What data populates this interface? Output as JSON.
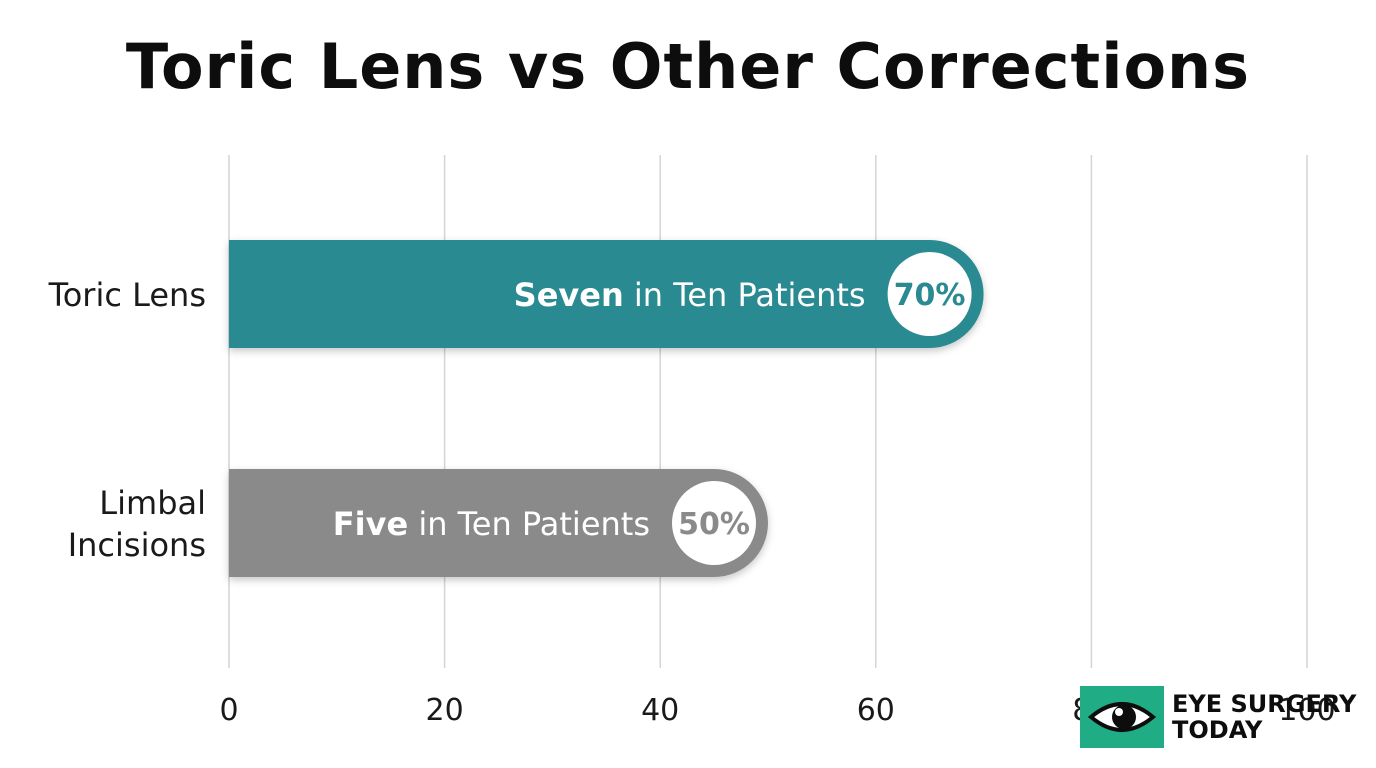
{
  "chart_data": {
    "type": "bar",
    "orientation": "horizontal",
    "title": "Toric Lens vs Other Corrections",
    "categories": [
      "Toric Lens",
      "Limbal Incisions"
    ],
    "category_lines": [
      [
        "Toric Lens"
      ],
      [
        "Limbal",
        "Incisions"
      ]
    ],
    "values": [
      70,
      50
    ],
    "bar_labels": [
      {
        "bold": "Seven",
        "rest": " in Ten Patients",
        "badge": "70%"
      },
      {
        "bold": "Five",
        "rest": " in Ten Patients",
        "badge": "50%"
      }
    ],
    "bar_colors": [
      "#2a8a91",
      "#8a8a8a"
    ],
    "xlim": [
      0,
      100
    ],
    "xticks": [
      0,
      20,
      40,
      60,
      80,
      100
    ],
    "grid": true
  },
  "logo": {
    "line1": "EYE SURGERY",
    "line2": "TODAY",
    "color": "#20ad86"
  }
}
